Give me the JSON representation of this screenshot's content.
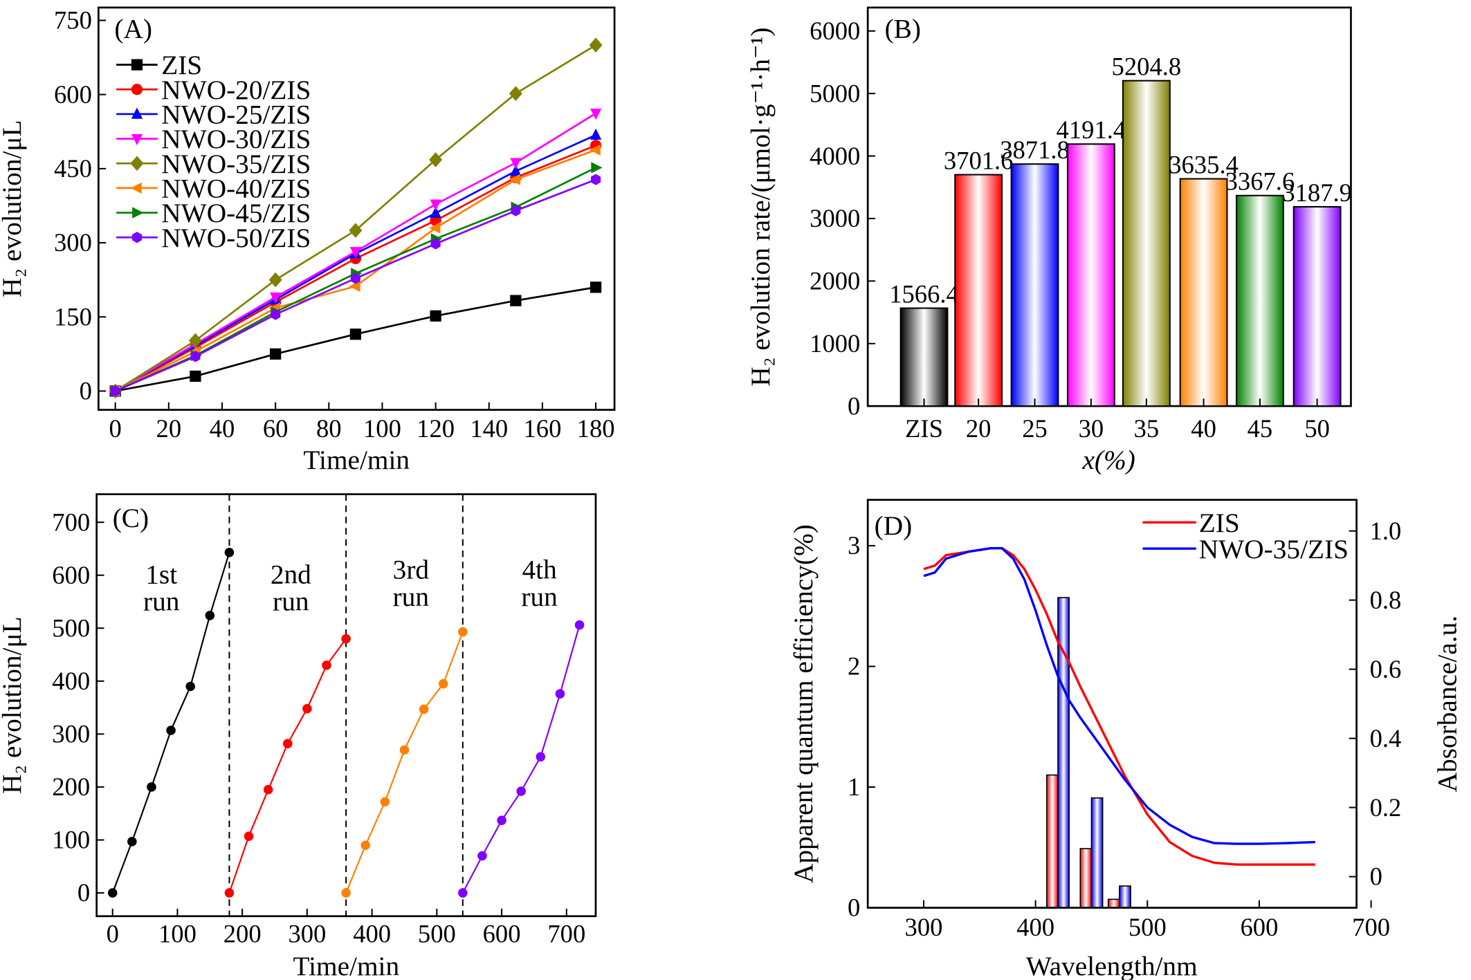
{
  "chart_data": [
    {
      "type": "line",
      "panel_label": "(A)",
      "xlabel": "Time/min",
      "ylabel": "H₂ evolution/μL",
      "xlim": [
        -6.3,
        187
      ],
      "ylim": [
        -38,
        776
      ],
      "xticks": [
        0,
        20,
        40,
        60,
        80,
        100,
        120,
        140,
        160,
        180
      ],
      "yticks": [
        0,
        150,
        300,
        450,
        600,
        750
      ],
      "grid": false,
      "legend": "top-left",
      "x": [
        0,
        30,
        60,
        90,
        120,
        150,
        180
      ],
      "series": [
        {
          "name": "ZIS",
          "color": "#000000",
          "marker": "square",
          "values": [
            0,
            30,
            75,
            115,
            152,
            183,
            210
          ]
        },
        {
          "name": "NWO-20/ZIS",
          "color": "#ff0000",
          "marker": "circle",
          "values": [
            0,
            88,
            180,
            268,
            345,
            432,
            497
          ]
        },
        {
          "name": "NWO-25/ZIS",
          "color": "#0000ff",
          "marker": "triangle-up",
          "values": [
            0,
            92,
            185,
            278,
            360,
            445,
            518
          ]
        },
        {
          "name": "NWO-30/ZIS",
          "color": "#ff00ff",
          "marker": "triangle-down",
          "values": [
            0,
            95,
            190,
            282,
            378,
            462,
            562
          ]
        },
        {
          "name": "NWO-35/ZIS",
          "color": "#808000",
          "marker": "diamond",
          "values": [
            0,
            102,
            225,
            325,
            468,
            602,
            700
          ]
        },
        {
          "name": "NWO-40/ZIS",
          "color": "#ff8000",
          "marker": "triangle-left",
          "values": [
            0,
            80,
            168,
            212,
            330,
            428,
            488
          ]
        },
        {
          "name": "NWO-45/ZIS",
          "color": "#008000",
          "marker": "triangle-right",
          "values": [
            0,
            72,
            160,
            238,
            308,
            372,
            452
          ]
        },
        {
          "name": "NWO-50/ZIS",
          "color": "#8000ff",
          "marker": "hexagon",
          "values": [
            0,
            70,
            155,
            228,
            298,
            365,
            428
          ]
        }
      ]
    },
    {
      "type": "bar",
      "panel_label": "(B)",
      "xlabel": "x(%)",
      "ylabel": "H₂ evolution rate/(μmol·g⁻¹·h⁻¹)",
      "ylim": [
        0,
        6375
      ],
      "yticks": [
        0,
        1000,
        2000,
        3000,
        4000,
        5000,
        6000
      ],
      "grid": false,
      "categories": [
        "ZIS",
        "20",
        "25",
        "30",
        "35",
        "40",
        "45",
        "50"
      ],
      "values": [
        1566.4,
        3701.6,
        3871.8,
        4191.4,
        5204.8,
        3635.4,
        3367.6,
        3187.9
      ],
      "data_labels": [
        "1566.4",
        "3701.6",
        "3871.8",
        "4191.4",
        "5204.8",
        "3635.4",
        "3367.6",
        "3187.9"
      ],
      "colors": [
        "#000000",
        "#ff0000",
        "#0000ff",
        "#ff00ff",
        "#808000",
        "#ff8000",
        "#008000",
        "#8000ff"
      ]
    },
    {
      "type": "line",
      "panel_label": "(C)",
      "xlabel": "Time/min",
      "ylabel": "H₂ evolution/μL",
      "xlim": [
        -24.6,
        745
      ],
      "ylim": [
        -44,
        753
      ],
      "xticks": [
        0,
        100,
        200,
        300,
        400,
        500,
        600,
        700
      ],
      "yticks": [
        0,
        100,
        200,
        300,
        400,
        500,
        600,
        700
      ],
      "grid": false,
      "dividers": [
        180,
        360,
        540
      ],
      "series": [
        {
          "label_line1": "1st",
          "label_line2": "run",
          "color": "#000000",
          "x": [
            0,
            30,
            60,
            90,
            120,
            150,
            180
          ],
          "values": [
            0,
            97,
            200,
            307,
            390,
            524,
            643
          ]
        },
        {
          "label_line1": "2nd",
          "label_line2": "run",
          "color": "#ff0000",
          "x": [
            180,
            210,
            240,
            270,
            300,
            330,
            360
          ],
          "values": [
            0,
            107,
            195,
            282,
            348,
            430,
            480
          ]
        },
        {
          "label_line1": "3rd",
          "label_line2": "run",
          "color": "#ff8000",
          "x": [
            360,
            390,
            420,
            450,
            480,
            510,
            540
          ],
          "values": [
            0,
            90,
            172,
            270,
            347,
            395,
            493
          ]
        },
        {
          "label_line1": "4th",
          "label_line2": "run",
          "color": "#8000ff",
          "x": [
            540,
            570,
            600,
            630,
            660,
            690,
            720
          ],
          "values": [
            0,
            70,
            137,
            192,
            257,
            376,
            506
          ]
        }
      ]
    },
    {
      "type": "bar+line",
      "panel_label": "(D)",
      "xlabel": "Wavelength/nm",
      "ylabel_left": "Apparent quantum efficiency(%)",
      "ylabel_right": "Absorbance/a.u.",
      "xlim": [
        250,
        687
      ],
      "ylim_left": [
        0,
        3.38
      ],
      "ylim_right": [
        -0.09,
        1.09
      ],
      "xticks": [
        300,
        400,
        500,
        600,
        700
      ],
      "yticks_left": [
        0,
        1,
        2,
        3
      ],
      "yticks_right": [
        0,
        0.2,
        0.4,
        0.6,
        0.8,
        1.0
      ],
      "yticklabels_right": [
        "0",
        "0.2",
        "0.4",
        "0.6",
        "0.8",
        "1.0"
      ],
      "grid": false,
      "legend": "top-right",
      "bar_wavelengths": [
        420,
        450,
        475
      ],
      "bars": [
        {
          "name": "ZIS",
          "color": "#ff0000",
          "values": [
            1.1,
            0.49,
            0.07
          ]
        },
        {
          "name": "NWO-35/ZIS",
          "color": "#0000ff",
          "values": [
            2.57,
            0.91,
            0.18
          ]
        }
      ],
      "curves_x": [
        300,
        310,
        320,
        340,
        360,
        370,
        380,
        390,
        400,
        410,
        420,
        430,
        440,
        460,
        480,
        500,
        520,
        540,
        560,
        580,
        600,
        625,
        650
      ],
      "series": [
        {
          "name": "ZIS",
          "color": "#ff0000",
          "values": [
            0.89,
            0.9,
            0.93,
            0.94,
            0.95,
            0.95,
            0.93,
            0.89,
            0.83,
            0.76,
            0.68,
            0.62,
            0.55,
            0.42,
            0.29,
            0.18,
            0.1,
            0.06,
            0.04,
            0.035,
            0.035,
            0.035,
            0.035
          ]
        },
        {
          "name": "NWO-35/ZIS",
          "color": "#0000ff",
          "values": [
            0.87,
            0.88,
            0.92,
            0.94,
            0.95,
            0.95,
            0.92,
            0.86,
            0.77,
            0.67,
            0.58,
            0.51,
            0.46,
            0.37,
            0.28,
            0.2,
            0.15,
            0.115,
            0.097,
            0.095,
            0.095,
            0.097,
            0.1
          ]
        }
      ]
    }
  ]
}
